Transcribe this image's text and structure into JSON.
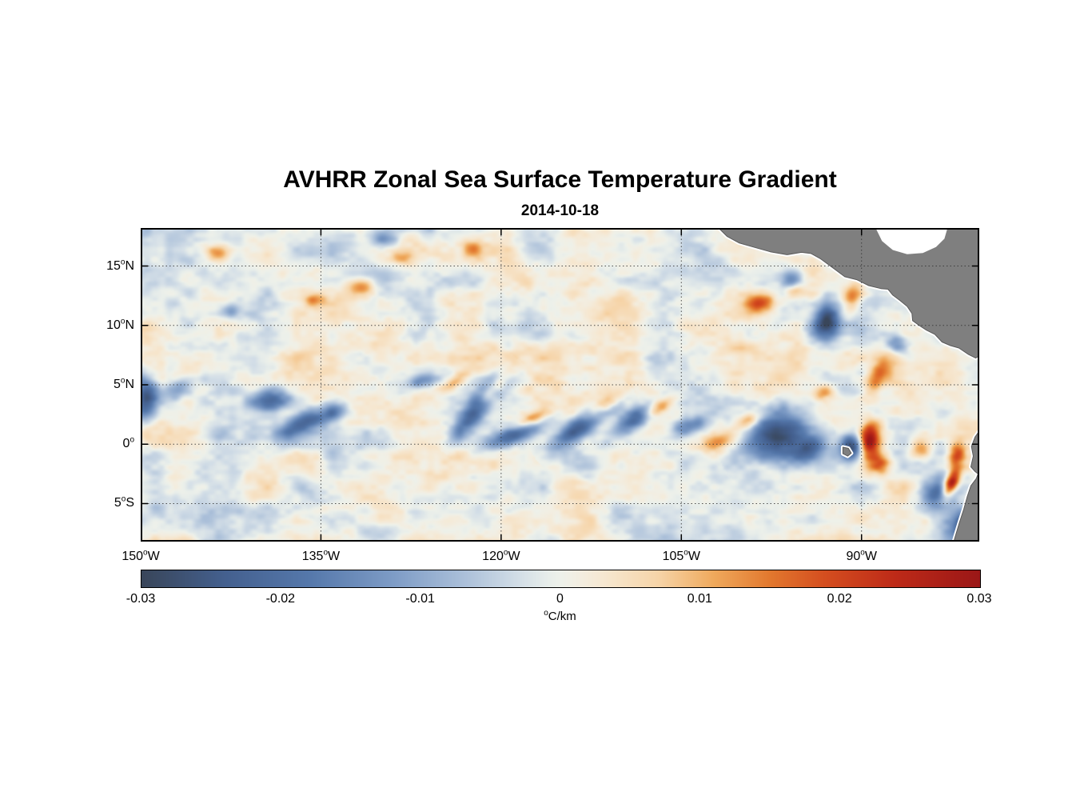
{
  "chart_data": {
    "type": "heatmap",
    "title": "AVHRR Zonal Sea Surface Temperature Gradient",
    "date": "2014-10-18",
    "x_axis": {
      "range": [
        -150,
        -80.2
      ],
      "ticks": [
        {
          "label": "150°W",
          "value": -150
        },
        {
          "label": "135°W",
          "value": -135
        },
        {
          "label": "120°W",
          "value": -120
        },
        {
          "label": "105°W",
          "value": -105
        },
        {
          "label": "90°W",
          "value": -90
        }
      ]
    },
    "y_axis": {
      "range": [
        -8.2,
        18.2
      ],
      "ticks": [
        {
          "label": "15°N",
          "value": 15
        },
        {
          "label": "10°N",
          "value": 10
        },
        {
          "label": "5°N",
          "value": 5
        },
        {
          "label": "0°",
          "value": 0
        },
        {
          "label": "5°S",
          "value": -5
        }
      ]
    },
    "colorbar": {
      "label": "°C/km",
      "range": [
        -0.03,
        0.03
      ],
      "ticks": [
        {
          "label": "-0.03",
          "value": -0.03
        },
        {
          "label": "-0.02",
          "value": -0.02
        },
        {
          "label": "-0.01",
          "value": -0.01
        },
        {
          "label": "0",
          "value": 0
        },
        {
          "label": "0.01",
          "value": 0.01
        },
        {
          "label": "0.02",
          "value": 0.02
        },
        {
          "label": "0.03",
          "value": 0.03
        }
      ],
      "stops": [
        [
          -0.03,
          "#39465a"
        ],
        [
          -0.024,
          "#44608f"
        ],
        [
          -0.018,
          "#5578ab"
        ],
        [
          -0.012,
          "#7e9cc6"
        ],
        [
          -0.007,
          "#aabfd9"
        ],
        [
          -0.003,
          "#d3dee7"
        ],
        [
          -0.001,
          "#e7edea"
        ],
        [
          0.0,
          "#eef1ea"
        ],
        [
          0.001,
          "#f2efe4"
        ],
        [
          0.003,
          "#f6e8d2"
        ],
        [
          0.007,
          "#f6d4a8"
        ],
        [
          0.011,
          "#efa95c"
        ],
        [
          0.015,
          "#e2782e"
        ],
        [
          0.019,
          "#d44d1f"
        ],
        [
          0.024,
          "#bd2a18"
        ],
        [
          0.03,
          "#9b1717"
        ]
      ]
    },
    "grid": {
      "color": "#333333",
      "dash": "1.5 3"
    },
    "field": {
      "seed": 20141018,
      "amplitude": 0.0095,
      "octaves": [
        {
          "fx": 0.3,
          "fy": 0.45,
          "amp": 1.0
        },
        {
          "fx": 0.75,
          "fy": 1.1,
          "amp": 0.5
        },
        {
          "fx": 1.7,
          "fy": 2.4,
          "amp": 0.28
        }
      ],
      "features": [
        [
          -149.6,
          3.8,
          0.7,
          1.1,
          0,
          -0.026
        ],
        [
          -147.0,
          4.6,
          0.8,
          0.5,
          20,
          -0.016
        ],
        [
          -139.3,
          3.6,
          1.3,
          0.75,
          15,
          -0.024
        ],
        [
          -136.3,
          1.9,
          1.6,
          0.6,
          25,
          -0.022
        ],
        [
          -133.9,
          2.6,
          0.8,
          0.5,
          30,
          -0.014
        ],
        [
          -129.8,
          17.3,
          0.8,
          0.5,
          0,
          -0.016
        ],
        [
          -126.7,
          5.3,
          0.8,
          0.45,
          18,
          -0.013
        ],
        [
          -121.8,
          3.3,
          2.0,
          0.55,
          52,
          -0.028
        ],
        [
          -118.8,
          0.9,
          1.8,
          0.55,
          22,
          -0.024
        ],
        [
          -113.1,
          1.7,
          2.2,
          0.6,
          38,
          -0.028
        ],
        [
          -108.9,
          2.1,
          1.4,
          0.55,
          33,
          -0.02
        ],
        [
          -104.6,
          1.4,
          1.1,
          0.5,
          18,
          -0.015
        ],
        [
          -97.2,
          0.6,
          1.9,
          1.2,
          22,
          -0.024
        ],
        [
          -94.6,
          -0.6,
          1.3,
          0.7,
          28,
          -0.018
        ],
        [
          -90.7,
          -0.2,
          0.75,
          0.8,
          0,
          -0.032
        ],
        [
          -92.9,
          10.6,
          0.8,
          1.2,
          -8,
          -0.028
        ],
        [
          -95.9,
          13.8,
          0.6,
          0.6,
          0,
          -0.014
        ],
        [
          -142.5,
          11.2,
          0.6,
          0.45,
          0,
          -0.012
        ],
        [
          -87.0,
          8.4,
          0.7,
          0.5,
          -20,
          -0.014
        ],
        [
          -83.6,
          -4.1,
          1.1,
          0.8,
          25,
          -0.02
        ],
        [
          -81.3,
          -6.9,
          0.9,
          1.1,
          -35,
          -0.028
        ],
        [
          -120.9,
          4.4,
          1.4,
          0.4,
          48,
          0.024
        ],
        [
          -123.8,
          5.3,
          1.0,
          0.4,
          28,
          0.014
        ],
        [
          -117.4,
          2.1,
          1.2,
          0.4,
          28,
          0.018
        ],
        [
          -111.6,
          3.1,
          1.4,
          0.45,
          40,
          0.018
        ],
        [
          -106.9,
          3.1,
          0.9,
          0.4,
          30,
          0.014
        ],
        [
          -102.1,
          0.1,
          1.1,
          0.5,
          18,
          0.014
        ],
        [
          -99.4,
          2.0,
          0.8,
          0.4,
          22,
          0.012
        ],
        [
          -89.4,
          0.3,
          0.6,
          1.0,
          -15,
          0.032
        ],
        [
          -88.5,
          -1.6,
          0.8,
          0.7,
          0,
          0.018
        ],
        [
          -82.55,
          -3.3,
          0.4,
          0.85,
          -25,
          0.038
        ],
        [
          -82.1,
          -0.9,
          0.5,
          0.7,
          -15,
          0.018
        ],
        [
          -98.3,
          11.9,
          0.85,
          0.65,
          18,
          0.02
        ],
        [
          -95.7,
          12.9,
          0.6,
          0.45,
          0,
          0.013
        ],
        [
          -88.7,
          5.6,
          0.55,
          1.1,
          -28,
          0.018
        ],
        [
          -131.6,
          13.2,
          0.85,
          0.5,
          8,
          0.014
        ],
        [
          -128.2,
          15.6,
          0.7,
          0.4,
          0,
          0.012
        ],
        [
          -135.6,
          12.1,
          0.65,
          0.4,
          18,
          0.012
        ],
        [
          -122.3,
          16.4,
          0.55,
          0.45,
          0,
          0.016
        ],
        [
          -143.6,
          16.1,
          0.7,
          0.45,
          0,
          0.012
        ],
        [
          -93.3,
          4.3,
          0.7,
          0.5,
          20,
          0.013
        ],
        [
          -90.8,
          12.4,
          0.55,
          0.8,
          -15,
          0.016
        ],
        [
          -85.2,
          -0.3,
          0.6,
          0.6,
          0,
          0.014
        ]
      ]
    },
    "land": {
      "fill": "#7f7f7f",
      "edge": "#595959",
      "halo": "#ffffff",
      "shapes": [
        {
          "name": "central-america",
          "water": false,
          "points": [
            [
              -102.0,
              18.3
            ],
            [
              -101.2,
              17.5
            ],
            [
              -100.2,
              16.95
            ],
            [
              -99.0,
              16.6
            ],
            [
              -97.6,
              16.2
            ],
            [
              -96.2,
              15.95
            ],
            [
              -95.0,
              16.15
            ],
            [
              -94.2,
              16.05
            ],
            [
              -93.4,
              15.6
            ],
            [
              -92.4,
              14.85
            ],
            [
              -91.4,
              14.1
            ],
            [
              -90.4,
              13.85
            ],
            [
              -89.4,
              13.35
            ],
            [
              -88.4,
              13.1
            ],
            [
              -87.8,
              13.05
            ],
            [
              -87.4,
              12.55
            ],
            [
              -86.8,
              12.1
            ],
            [
              -86.2,
              11.6
            ],
            [
              -85.8,
              11.0
            ],
            [
              -85.75,
              10.4
            ],
            [
              -85.2,
              10.0
            ],
            [
              -84.6,
              9.6
            ],
            [
              -83.9,
              9.25
            ],
            [
              -83.3,
              8.6
            ],
            [
              -82.6,
              8.3
            ],
            [
              -81.9,
              8.1
            ],
            [
              -81.1,
              7.55
            ],
            [
              -80.5,
              7.25
            ],
            [
              -80.1,
              7.5
            ],
            [
              -80.1,
              18.3
            ]
          ]
        },
        {
          "name": "south-america",
          "water": false,
          "points": [
            [
              -80.1,
              1.25
            ],
            [
              -80.55,
              0.6
            ],
            [
              -80.85,
              -0.2
            ],
            [
              -80.7,
              -1.0
            ],
            [
              -80.9,
              -1.9
            ],
            [
              -80.55,
              -2.3
            ],
            [
              -80.3,
              -2.5
            ],
            [
              -80.45,
              -2.9
            ],
            [
              -80.9,
              -3.5
            ],
            [
              -81.2,
              -4.4
            ],
            [
              -81.5,
              -5.5
            ],
            [
              -81.85,
              -6.6
            ],
            [
              -82.15,
              -7.6
            ],
            [
              -82.35,
              -8.3
            ],
            [
              -80.1,
              -8.3
            ]
          ]
        },
        {
          "name": "galapagos-islands",
          "water": false,
          "points": [
            [
              -91.55,
              -0.25
            ],
            [
              -91.1,
              -0.35
            ],
            [
              -90.85,
              -0.75
            ],
            [
              -91.15,
              -1.0
            ],
            [
              -91.55,
              -0.8
            ]
          ]
        },
        {
          "name": "caribbean-sea",
          "water": true,
          "points": [
            [
              -88.9,
              18.35
            ],
            [
              -88.3,
              17.1
            ],
            [
              -87.4,
              16.35
            ],
            [
              -86.2,
              16.0
            ],
            [
              -84.9,
              16.1
            ],
            [
              -83.8,
              16.6
            ],
            [
              -83.1,
              17.3
            ],
            [
              -82.8,
              18.35
            ]
          ]
        }
      ]
    }
  }
}
